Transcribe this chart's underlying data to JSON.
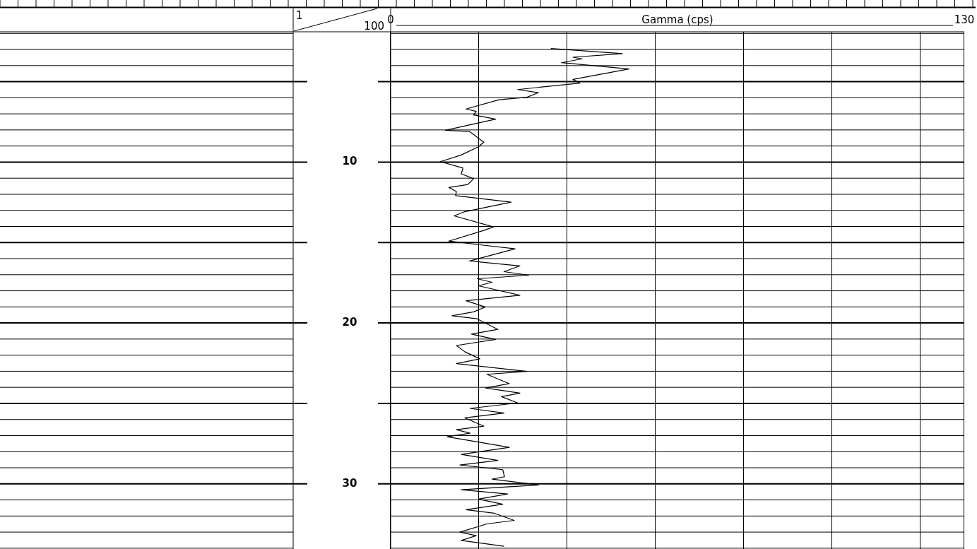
{
  "chart_data": {
    "type": "line",
    "xlabel": "Gamma (cps)",
    "x": [
      36.3,
      52.5,
      41.3,
      43.4,
      38.7,
      54.0,
      41.3,
      42.9,
      28.8,
      33.5,
      30.9,
      24.6,
      17.1,
      19.4,
      18.8,
      23.8,
      12.4,
      17.9,
      21.1,
      19.9,
      16.0,
      11.3,
      16.4,
      16.0,
      18.8,
      17.5,
      13.2,
      14.9,
      14.7,
      27.3,
      16.8,
      14.4,
      23.3,
      21.1,
      13.2,
      19.9,
      28.2,
      17.9,
      29.3,
      25.7,
      31.3,
      19.6,
      23.0,
      19.9,
      29.3,
      17.1,
      21.5,
      18.8,
      13.9,
      19.6,
      24.3,
      18.3,
      23.8,
      14.9,
      16.8,
      20.2,
      14.9,
      30.9,
      21.8,
      26.9,
      21.5,
      29.3,
      25.1,
      28.8,
      18.0,
      25.7,
      16.8,
      21.1,
      14.9,
      18.0,
      12.8,
      26.9,
      16.0,
      24.3,
      15.7,
      25.4,
      25.8,
      23.0,
      33.5,
      16.0,
      26.5,
      19.9,
      25.4,
      17.1,
      23.5,
      28.0,
      21.8,
      15.7,
      19.4,
      16.0,
      25.7
    ],
    "series": [
      {
        "color": "#000000",
        "values": [
          2.94,
          3.26,
          3.48,
          3.58,
          3.82,
          4.21,
          4.86,
          5.09,
          5.49,
          5.68,
          5.97,
          6.12,
          6.7,
          6.85,
          7.07,
          7.33,
          8.02,
          8.1,
          8.76,
          9.05,
          9.56,
          9.97,
          10.37,
          10.73,
          11.03,
          11.39,
          11.58,
          11.83,
          12.08,
          12.49,
          13.08,
          13.34,
          14.03,
          14.25,
          14.91,
          15.13,
          15.39,
          16.15,
          16.45,
          16.81,
          17.03,
          17.25,
          17.47,
          17.69,
          18.28,
          18.62,
          19.01,
          19.31,
          19.55,
          19.74,
          20.4,
          20.69,
          21.02,
          21.4,
          21.79,
          22.23,
          22.53,
          23.01,
          23.19,
          23.77,
          24.04,
          24.36,
          24.58,
          24.97,
          25.31,
          25.6,
          25.9,
          26.41,
          26.63,
          26.85,
          27.07,
          27.73,
          28.17,
          28.54,
          28.83,
          29.12,
          29.56,
          29.71,
          30.07,
          30.37,
          30.63,
          30.95,
          31.27,
          31.61,
          31.83,
          32.27,
          32.49,
          33.0,
          33.22,
          33.52,
          33.88
        ]
      }
    ],
    "xlim": [
      0,
      130
    ],
    "xticks": [
      0,
      {
        "value": 20,
        "label": null
      },
      {
        "value": 40,
        "label": null
      },
      {
        "value": 60,
        "label": null
      },
      {
        "value": 80,
        "label": null
      },
      {
        "value": 100,
        "label": null
      },
      {
        "value": 120,
        "label": null
      },
      130
    ],
    "ylim": [
      34.05,
      1.9
    ],
    "yticks": [
      {
        "value": 2,
        "label": null
      },
      {
        "value": 3,
        "label": null
      },
      {
        "value": 4,
        "label": null
      },
      {
        "value": 5,
        "label": null
      },
      {
        "value": 6,
        "label": null
      },
      {
        "value": 7,
        "label": null
      },
      {
        "value": 8,
        "label": null
      },
      {
        "value": 9,
        "label": null
      },
      10,
      {
        "value": 11,
        "label": null
      },
      {
        "value": 12,
        "label": null
      },
      {
        "value": 13,
        "label": null
      },
      {
        "value": 14,
        "label": null
      },
      {
        "value": 15,
        "label": null
      },
      {
        "value": 16,
        "label": null
      },
      {
        "value": 17,
        "label": null
      },
      {
        "value": 18,
        "label": null
      },
      {
        "value": 19,
        "label": null
      },
      20,
      {
        "value": 21,
        "label": null
      },
      {
        "value": 22,
        "label": null
      },
      {
        "value": 23,
        "label": null
      },
      {
        "value": 24,
        "label": null
      },
      {
        "value": 25,
        "label": null
      },
      {
        "value": 26,
        "label": null
      },
      {
        "value": 27,
        "label": null
      },
      {
        "value": 28,
        "label": null
      },
      {
        "value": 29,
        "label": null
      },
      30,
      {
        "value": 31,
        "label": null
      },
      {
        "value": 32,
        "label": null
      },
      {
        "value": 33,
        "label": null
      },
      {
        "value": 34,
        "label": null
      }
    ],
    "grid": true,
    "legend": false,
    "marker": "none",
    "line_style": "solid",
    "annotations": [
      "1",
      "100"
    ]
  }
}
